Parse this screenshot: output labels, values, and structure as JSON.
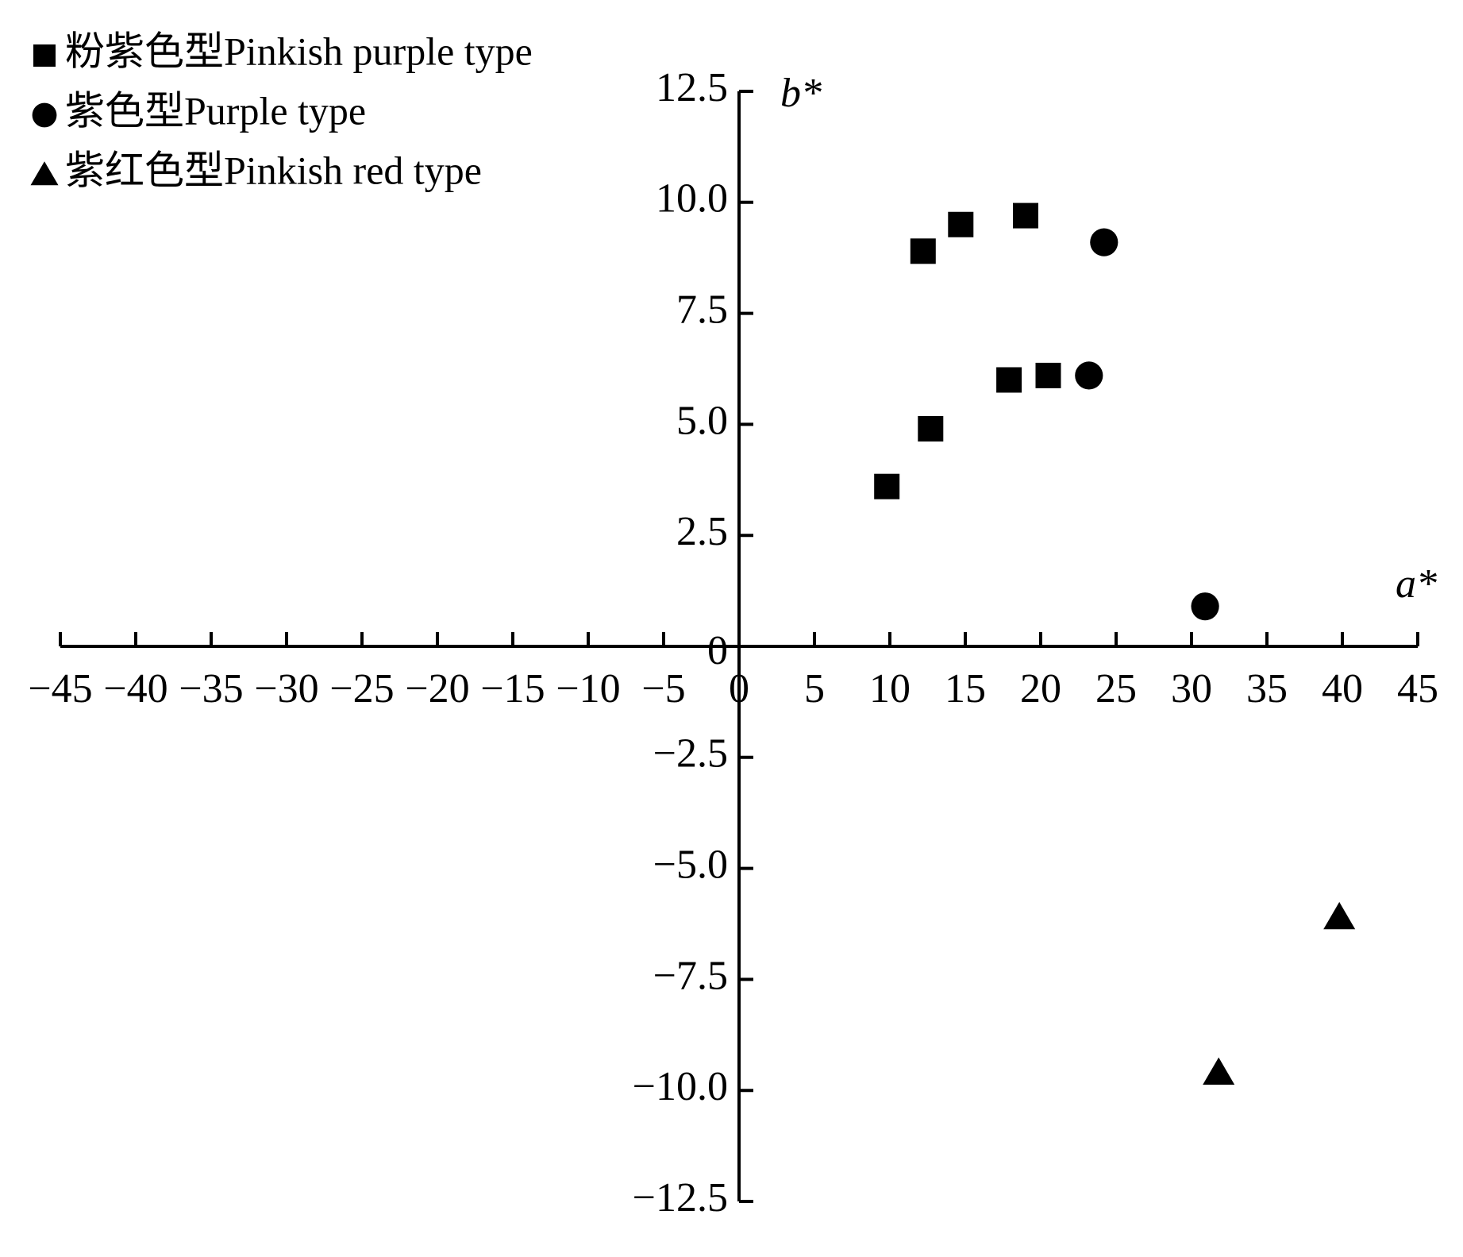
{
  "chart_data": {
    "type": "scatter",
    "x_label": "a*",
    "y_label": "b*",
    "xlim": [
      -45,
      45
    ],
    "xticks": [
      {
        "value": -45,
        "label": "−45"
      },
      {
        "value": -40,
        "label": "−40"
      },
      {
        "value": -35,
        "label": "−35"
      },
      {
        "value": -30,
        "label": "−30"
      },
      {
        "value": -25,
        "label": "−25"
      },
      {
        "value": -20,
        "label": "−20"
      },
      {
        "value": -15,
        "label": "−15"
      },
      {
        "value": -10,
        "label": "−10"
      },
      {
        "value": -5,
        "label": "−5"
      },
      0,
      5,
      10,
      15,
      20,
      25,
      30,
      35,
      40,
      45
    ],
    "ylim": [
      -12.5,
      12.5
    ],
    "yticks": [
      {
        "value": -12.5,
        "label": "−12.5"
      },
      {
        "value": -10,
        "label": "−10.0"
      },
      {
        "value": -7.5,
        "label": "−7.5"
      },
      {
        "value": -5,
        "label": "−5.0"
      },
      {
        "value": -2.5,
        "label": "−2.5"
      },
      0,
      2.5,
      {
        "value": 5,
        "label": "5.0"
      },
      7.5,
      {
        "value": 10,
        "label": "10.0"
      },
      12.5
    ],
    "legend": "top-left",
    "series": [
      {
        "name": "粉紫色型Pinkish purple type",
        "marker": "square",
        "color": "#000000",
        "x": [
          9.8,
          12.2,
          14.7,
          19.0,
          12.7,
          17.9,
          20.5
        ],
        "values": [
          3.6,
          8.9,
          9.5,
          9.7,
          4.9,
          6.0,
          6.1
        ]
      },
      {
        "name": "紫色型Purple type",
        "marker": "circle",
        "color": "#000000",
        "x": [
          24.2,
          23.2,
          30.9
        ],
        "values": [
          9.1,
          6.1,
          0.9
        ]
      },
      {
        "name": "紫红色型Pinkish red type",
        "marker": "triangle",
        "color": "#000000",
        "x": [
          39.8,
          31.8
        ],
        "values": [
          -6.1,
          -9.6
        ]
      }
    ]
  }
}
